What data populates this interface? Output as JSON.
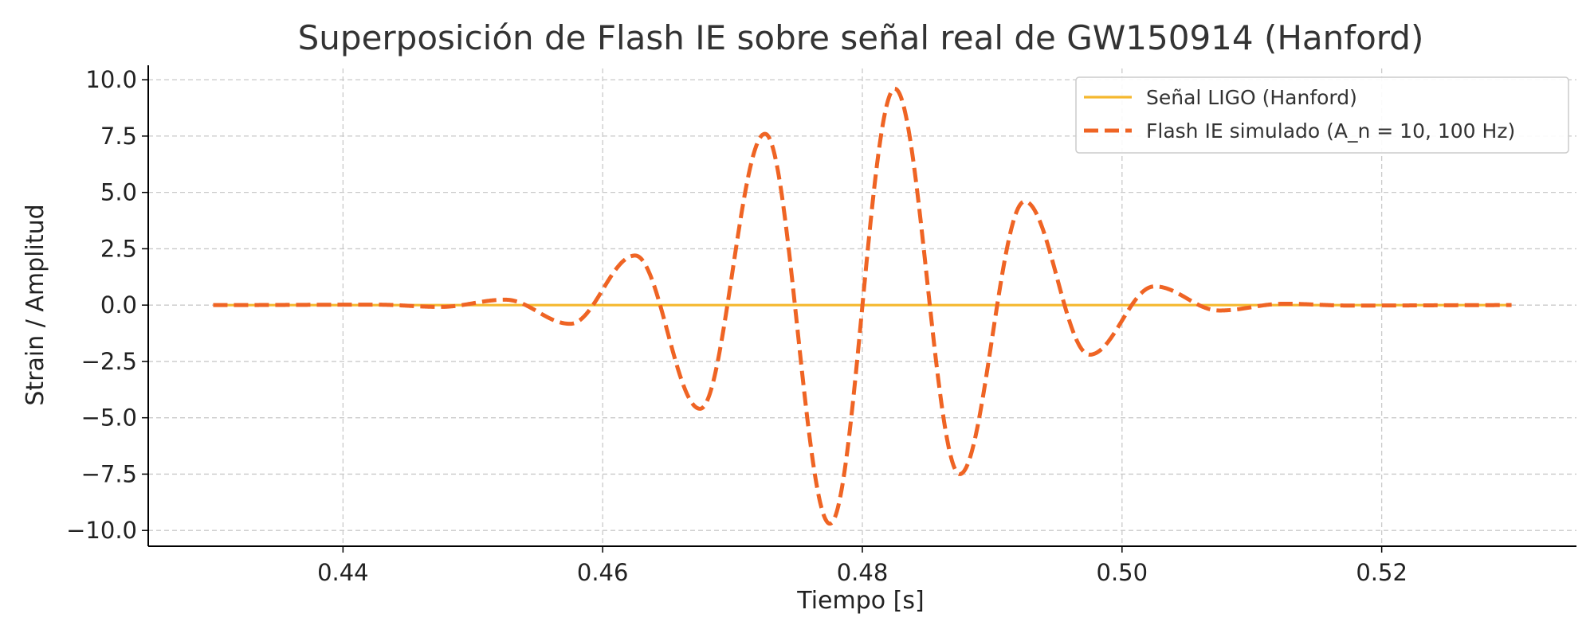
{
  "chart_data": {
    "type": "line",
    "title": "Superposición de Flash IE sobre señal real de GW150914 (Hanford)",
    "xlabel": "Tiempo [s]",
    "ylabel": "Strain / Amplitud",
    "xlim": [
      0.425,
      0.535
    ],
    "ylim": [
      -10.7,
      10.5
    ],
    "xticks": [
      0.44,
      0.46,
      0.48,
      0.5,
      0.52
    ],
    "xtick_labels": [
      "0.44",
      "0.46",
      "0.48",
      "0.50",
      "0.52"
    ],
    "yticks": [
      10.0,
      7.5,
      5.0,
      2.5,
      0.0,
      -2.5,
      -5.0,
      -7.5,
      -10.0
    ],
    "ytick_labels": [
      "10.0",
      "7.5",
      "5.0",
      "2.5",
      "0.0",
      "−2.5",
      "−5.0",
      "−7.5",
      "−10.0"
    ],
    "grid": true,
    "legend_position": "top-right",
    "series": [
      {
        "name": "Señal LIGO (Hanford)",
        "color": "#f5b82e",
        "style": "solid",
        "x": [
          0.43,
          0.53
        ],
        "y": [
          0.0,
          0.0
        ]
      },
      {
        "name": "Flash IE simulado (A_n = 10, 100 Hz)",
        "color": "#ef6424",
        "style": "dashed",
        "x": [
          0.43,
          0.4425,
          0.4475,
          0.4525,
          0.4575,
          0.4625,
          0.4675,
          0.4725,
          0.4775,
          0.4825,
          0.4875,
          0.4925,
          0.4975,
          0.5025,
          0.5075,
          0.5125,
          0.5175,
          0.53
        ],
        "y": [
          0.0,
          0.02,
          -0.08,
          0.24,
          -0.83,
          2.2,
          -4.6,
          7.6,
          -9.7,
          9.6,
          -7.5,
          4.6,
          -2.2,
          0.83,
          -0.24,
          0.06,
          -0.02,
          0.0
        ]
      }
    ]
  }
}
